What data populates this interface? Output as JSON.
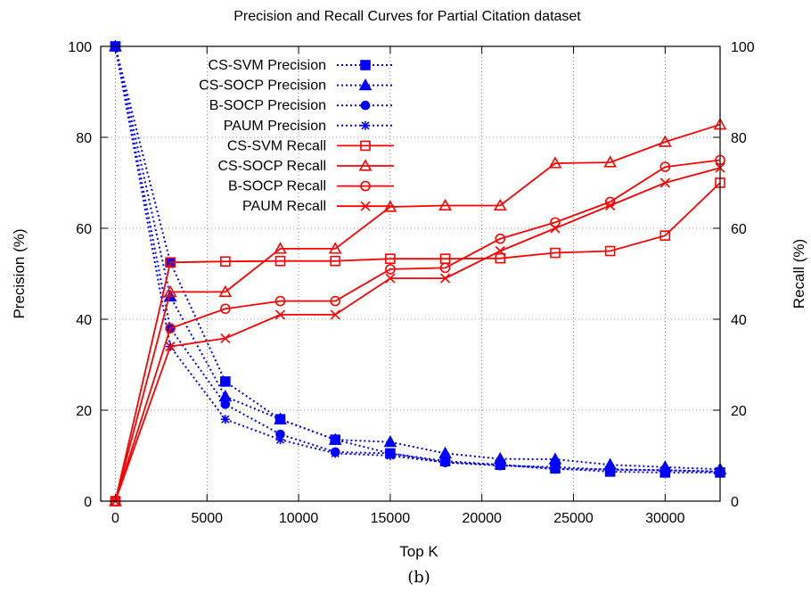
{
  "chart_data": {
    "type": "line",
    "title": "Precision and Recall Curves for Partial Citation dataset",
    "xlabel": "Top K",
    "ylabel": "Precision (%)",
    "y2label": "Recall (%)",
    "caption": "(b)",
    "xlim": [
      -800,
      33000
    ],
    "ylim": [
      0,
      100
    ],
    "y2lim": [
      0,
      100
    ],
    "xticks": [
      0,
      5000,
      10000,
      15000,
      20000,
      25000,
      30000
    ],
    "yticks": [
      0,
      20,
      40,
      60,
      80,
      100
    ],
    "y2ticks": [
      0,
      20,
      40,
      60,
      80,
      100
    ],
    "grid": true,
    "legend_position": "top-left",
    "x": [
      0,
      3000,
      6000,
      9000,
      12000,
      15000,
      18000,
      21000,
      24000,
      27000,
      30000,
      33000
    ],
    "series": [
      {
        "name": "CS-SVM Precision",
        "axis": "left",
        "style": "dotted",
        "marker": "filled-square",
        "color": "#0000ff",
        "values": [
          100,
          52.5,
          26.3,
          18.0,
          13.5,
          10.5,
          8.8,
          8.0,
          7.2,
          6.5,
          6.3,
          6.3
        ]
      },
      {
        "name": "CS-SOCP Precision",
        "axis": "left",
        "style": "dotted",
        "marker": "filled-triangle",
        "color": "#0000ff",
        "values": [
          100,
          45.0,
          23.0,
          18.0,
          13.5,
          13.0,
          10.5,
          9.3,
          9.2,
          8.0,
          7.5,
          7.0
        ]
      },
      {
        "name": "B-SOCP Precision",
        "axis": "left",
        "style": "dotted",
        "marker": "filled-circle",
        "color": "#0000ff",
        "values": [
          100,
          38.0,
          21.3,
          14.7,
          10.8,
          10.5,
          8.5,
          7.8,
          7.5,
          6.9,
          6.8,
          6.5
        ]
      },
      {
        "name": "PAUM Precision",
        "axis": "left",
        "style": "dotted",
        "marker": "star",
        "color": "#0000ff",
        "values": [
          100,
          34.0,
          18.0,
          13.5,
          10.5,
          10.0,
          8.5,
          8.0,
          7.0,
          7.0,
          6.8,
          6.5
        ]
      },
      {
        "name": "CS-SVM Recall",
        "axis": "right",
        "style": "solid",
        "marker": "open-square",
        "color": "#ff0000",
        "values": [
          0,
          52.5,
          52.7,
          52.8,
          52.8,
          53.3,
          53.3,
          53.4,
          54.6,
          55.0,
          58.4,
          70.0
        ]
      },
      {
        "name": "CS-SOCP Recall",
        "axis": "right",
        "style": "solid",
        "marker": "open-triangle",
        "color": "#ff0000",
        "values": [
          0,
          46.0,
          46.0,
          55.5,
          55.5,
          64.7,
          65.0,
          65.0,
          74.3,
          74.5,
          79.0,
          82.8
        ]
      },
      {
        "name": "B-SOCP Recall",
        "axis": "right",
        "style": "solid",
        "marker": "open-circle",
        "color": "#ff0000",
        "values": [
          0,
          38.0,
          42.3,
          44.0,
          44.0,
          51.0,
          51.3,
          57.7,
          61.3,
          65.8,
          73.5,
          75.0
        ]
      },
      {
        "name": "PAUM Recall",
        "axis": "right",
        "style": "solid",
        "marker": "x",
        "color": "#ff0000",
        "values": [
          0,
          34.0,
          35.8,
          41.0,
          41.0,
          49.0,
          49.0,
          55.0,
          60.0,
          65.0,
          70.0,
          73.3
        ]
      }
    ]
  }
}
